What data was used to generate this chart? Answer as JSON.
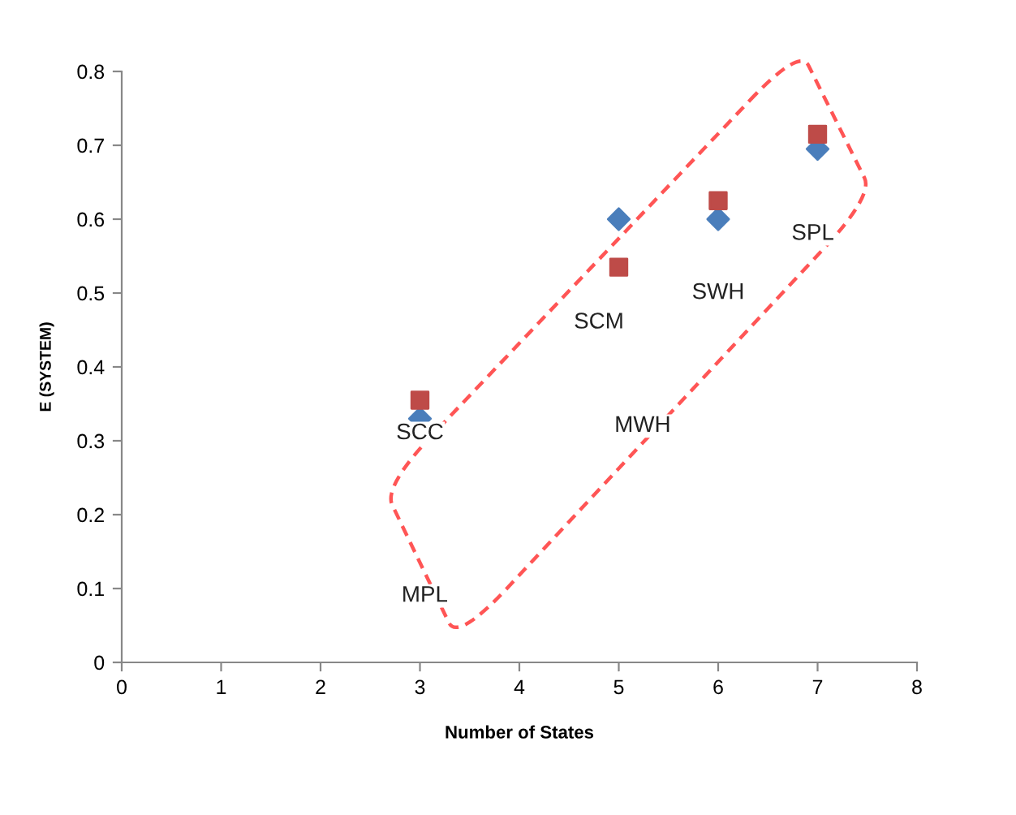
{
  "chart_data": {
    "type": "scatter",
    "xlabel": "Number of States",
    "ylabel": "E (SYSTEM)",
    "series": [
      {
        "color": "#4a7ebb",
        "marker": "diamond",
        "x": [
          3,
          5,
          6,
          7
        ],
        "values": [
          0.33,
          0.6,
          0.6,
          0.695
        ]
      },
      {
        "color": "#be4b48",
        "marker": "square",
        "x": [
          3,
          5,
          6,
          7
        ],
        "values": [
          0.355,
          0.535,
          0.625,
          0.715
        ]
      }
    ],
    "annotations": [
      "SCC",
      "SCM",
      "SWH",
      "SPL",
      "MWH",
      "MPL"
    ],
    "xlim": [
      0,
      8
    ],
    "xticks": [
      0,
      1,
      2,
      3,
      4,
      5,
      6,
      7,
      8
    ],
    "ylim": [
      0,
      0.8
    ],
    "yticks": [
      0,
      0.1,
      0.2,
      0.3,
      0.4,
      0.5,
      0.6,
      0.7,
      0.8
    ],
    "grid": false,
    "legend": false
  }
}
